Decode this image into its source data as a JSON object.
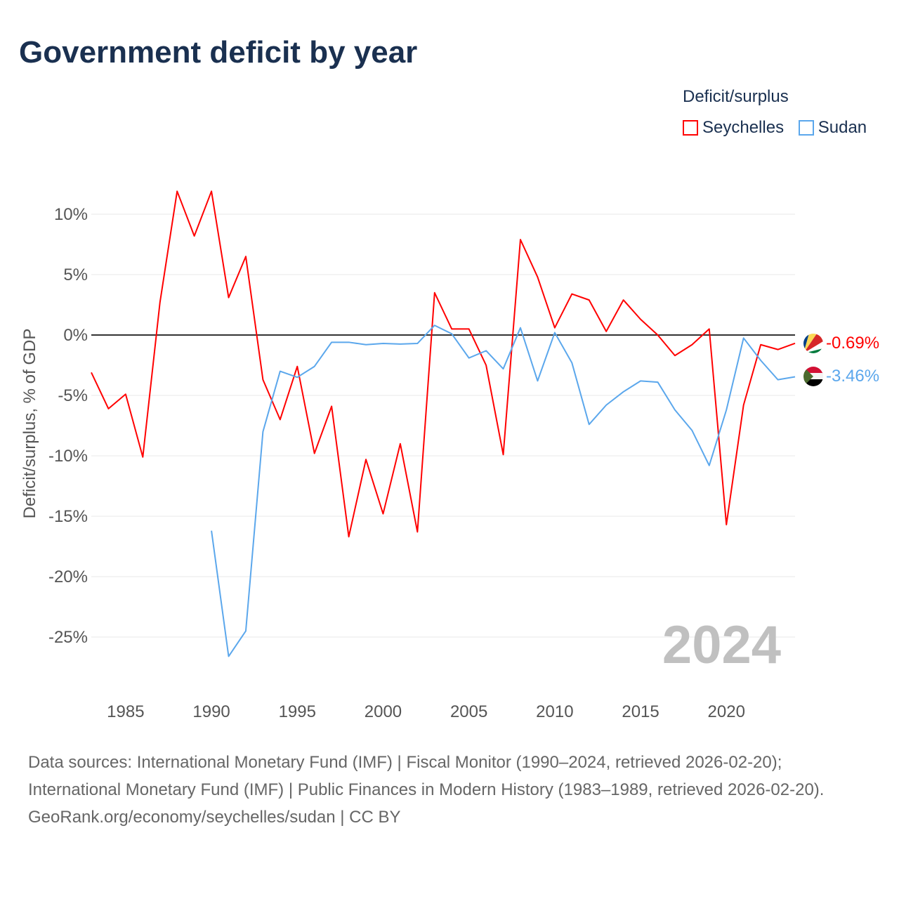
{
  "title": "Government deficit by year",
  "legend": {
    "title": "Deficit/surplus",
    "items": [
      "Seychelles",
      "Sudan"
    ]
  },
  "year_watermark": "2024",
  "footer": {
    "sources": "Data sources: International Monetary Fund (IMF) | Fiscal Monitor (1990–2024, retrieved 2026-02-20); International Monetary Fund (IMF) | Public Finances in Modern History (1983–1989, retrieved 2026-02-20).",
    "credit": "GeoRank.org/economy/seychelles/sudan | CC BY"
  },
  "colors": {
    "Seychelles": "#ff0000",
    "Sudan": "#5ba7ec"
  },
  "chart_data": {
    "type": "line",
    "title": "Government deficit by year",
    "xlabel": "",
    "ylabel": "Deficit/surplus, % of GDP",
    "xlim": [
      1983,
      2024
    ],
    "ylim": [
      -29,
      13
    ],
    "xticks": [
      1985,
      1990,
      1995,
      2000,
      2005,
      2010,
      2015,
      2020
    ],
    "xtick_labels": [
      "1985",
      "1990",
      "1995",
      "2000",
      "2005",
      "2010",
      "2015",
      "2020"
    ],
    "yticks": [
      10,
      5,
      0,
      -5,
      -10,
      -15,
      -20,
      -25
    ],
    "ytick_labels": [
      "10%",
      "5%",
      "0%",
      "-5%",
      "-10%",
      "-15%",
      "-20%",
      "-25%"
    ],
    "grid": true,
    "legend_position": "top-right",
    "series": [
      {
        "name": "Seychelles",
        "end_label": "-0.69%",
        "x": [
          1983,
          1984,
          1985,
          1986,
          1987,
          1988,
          1989,
          1990,
          1991,
          1992,
          1993,
          1994,
          1995,
          1996,
          1997,
          1998,
          1999,
          2000,
          2001,
          2002,
          2003,
          2004,
          2005,
          2006,
          2007,
          2008,
          2009,
          2010,
          2011,
          2012,
          2013,
          2014,
          2015,
          2016,
          2017,
          2018,
          2019,
          2020,
          2021,
          2022,
          2023,
          2024
        ],
        "values": [
          -3.1,
          -6.1,
          -4.9,
          -10.1,
          2.7,
          11.9,
          8.2,
          11.9,
          3.1,
          6.5,
          -3.7,
          -7.0,
          -2.6,
          -9.8,
          -5.9,
          -16.7,
          -10.3,
          -14.8,
          -9.0,
          -16.3,
          3.5,
          0.5,
          0.5,
          -2.5,
          -9.9,
          7.9,
          4.8,
          0.6,
          3.4,
          2.9,
          0.3,
          2.9,
          1.3,
          0.0,
          -1.7,
          -0.8,
          0.5,
          -15.7,
          -5.8,
          -0.8,
          -1.2,
          -0.69
        ]
      },
      {
        "name": "Sudan",
        "end_label": "-3.46%",
        "x": [
          1990,
          1991,
          1992,
          1993,
          1994,
          1995,
          1996,
          1997,
          1998,
          1999,
          2000,
          2001,
          2002,
          2003,
          2004,
          2005,
          2006,
          2007,
          2008,
          2009,
          2010,
          2011,
          2012,
          2013,
          2014,
          2015,
          2016,
          2017,
          2018,
          2019,
          2020,
          2021,
          2022,
          2023,
          2024
        ],
        "values": [
          -16.2,
          -26.6,
          -24.5,
          -8.0,
          -3.0,
          -3.5,
          -2.6,
          -0.6,
          -0.6,
          -0.8,
          -0.7,
          -0.75,
          -0.7,
          0.8,
          0.1,
          -1.9,
          -1.3,
          -2.8,
          0.6,
          -3.8,
          0.2,
          -2.3,
          -7.4,
          -5.8,
          -4.7,
          -3.8,
          -3.9,
          -6.2,
          -7.9,
          -10.8,
          -6.2,
          -0.25,
          -2.1,
          -3.7,
          -3.46
        ]
      }
    ]
  }
}
